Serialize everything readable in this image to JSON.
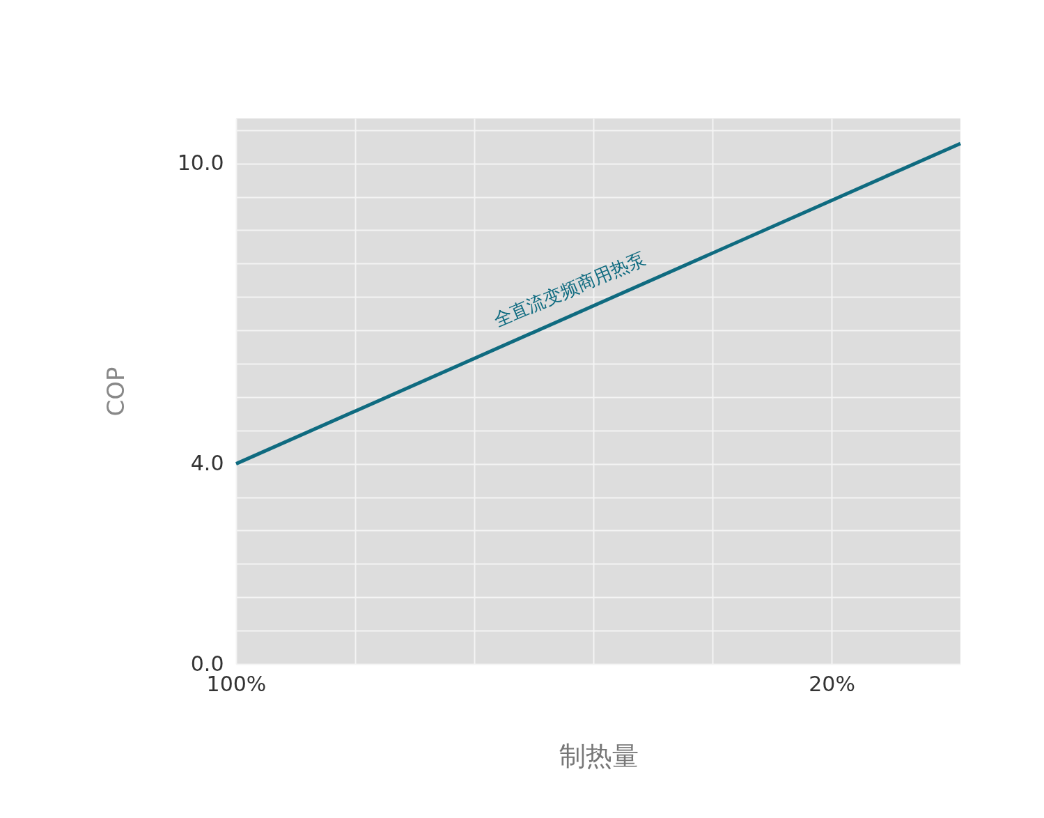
{
  "chart_data": {
    "type": "line",
    "xlabel": "制热量",
    "ylabel": "COP",
    "x": [
      100,
      2.7
    ],
    "series": [
      {
        "name": "全直流变频商用热泵",
        "color": "#0f6b80",
        "values": [
          4.0,
          10.4
        ]
      }
    ],
    "xlim": [
      100,
      2.7
    ],
    "ylim": [
      0,
      10.9
    ],
    "xticks": [
      {
        "value": 100,
        "label": "100%"
      },
      {
        "value": 84,
        "label": null
      },
      {
        "value": 68,
        "label": null
      },
      {
        "value": 52,
        "label": null
      },
      {
        "value": 36,
        "label": null
      },
      {
        "value": 20,
        "label": "20%"
      }
    ],
    "yticks": [
      {
        "value": 0,
        "label": "0.0"
      },
      {
        "value": 0.667,
        "label": null
      },
      {
        "value": 1.333,
        "label": null
      },
      {
        "value": 2,
        "label": null
      },
      {
        "value": 2.667,
        "label": null
      },
      {
        "value": 3.333,
        "label": null
      },
      {
        "value": 4,
        "label": "4.0"
      },
      {
        "value": 4.667,
        "label": null
      },
      {
        "value": 5.333,
        "label": null
      },
      {
        "value": 6,
        "label": null
      },
      {
        "value": 6.667,
        "label": null
      },
      {
        "value": 7.333,
        "label": null
      },
      {
        "value": 8,
        "label": null
      },
      {
        "value": 8.667,
        "label": null
      },
      {
        "value": 9.333,
        "label": null
      },
      {
        "value": 10,
        "label": "10.0"
      },
      {
        "value": 10.667,
        "label": null
      }
    ],
    "grid": true,
    "marker": "none",
    "line_style": "solid"
  }
}
